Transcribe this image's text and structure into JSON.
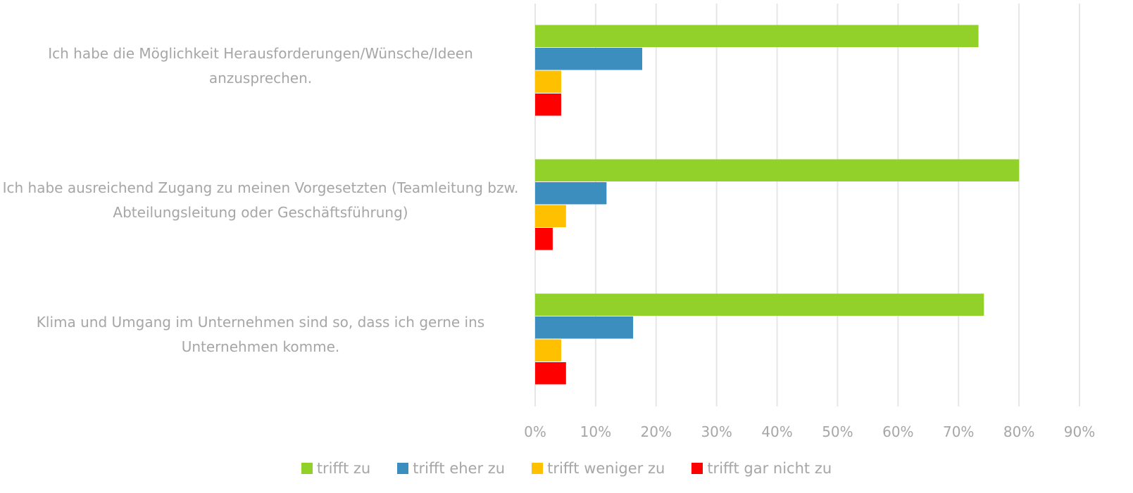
{
  "chart_data": {
    "type": "bar",
    "orientation": "horizontal",
    "categories": [
      "Ich habe die Möglichkeit Herausforderungen/Wünsche/Ideen anzusprechen.",
      "Ich habe ausreichend Zugang zu meinen Vorgesetzten (Teamleitung bzw. Abteilungsleitung oder Geschäftsführung)",
      "Klima und Umgang im Unternehmen sind so, dass ich gerne ins Unternehmen komme."
    ],
    "series": [
      {
        "name": "trifft zu",
        "color": "#92d12a",
        "values": [
          73.3,
          80,
          74.2
        ]
      },
      {
        "name": "trifft eher zu",
        "color": "#3c8ebf",
        "values": [
          17.7,
          11.8,
          16.2
        ]
      },
      {
        "name": "trifft weniger zu",
        "color": "#ffc000",
        "values": [
          4.3,
          5.1,
          4.3
        ]
      },
      {
        "name": "trifft gar nicht zu",
        "color": "#ff0000",
        "values": [
          4.3,
          2.9,
          5.1
        ]
      }
    ],
    "xlim": [
      0,
      90
    ],
    "xticks": [
      {
        "value": 0,
        "label": "0%"
      },
      {
        "value": 10,
        "label": "10%"
      },
      {
        "value": 20,
        "label": "20%"
      },
      {
        "value": 30,
        "label": "30%"
      },
      {
        "value": 40,
        "label": "40%"
      },
      {
        "value": 50,
        "label": "50%"
      },
      {
        "value": 60,
        "label": "60%"
      },
      {
        "value": 70,
        "label": "70%"
      },
      {
        "value": 80,
        "label": "80%"
      },
      {
        "value": 90,
        "label": "90%"
      }
    ],
    "grid": true,
    "legend": "bottom"
  }
}
